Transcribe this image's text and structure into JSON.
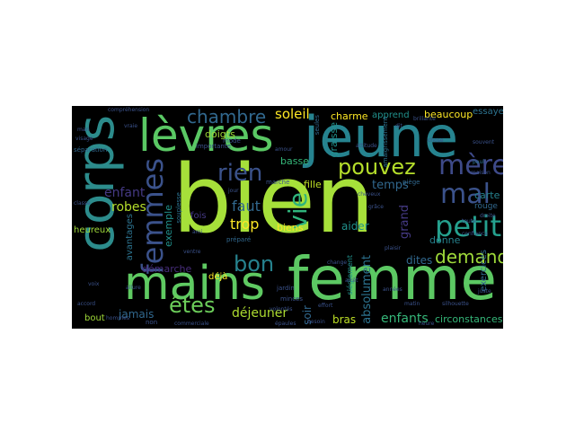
{
  "wordcloud": {
    "background": "#000000",
    "words": [
      {
        "id": "bien",
        "text": "bien",
        "color": "#a6e03a"
      },
      {
        "id": "femme",
        "text": "femme",
        "color": "#5cc863"
      },
      {
        "id": "jeune",
        "text": "jeune",
        "color": "#26838f"
      },
      {
        "id": "corps",
        "text": "corps",
        "color": "#2c8c8c"
      },
      {
        "id": "levres",
        "text": "lèvres",
        "color": "#5ac864"
      },
      {
        "id": "mains",
        "text": "mains",
        "color": "#5fca62"
      },
      {
        "id": "femmes",
        "text": "femmes",
        "color": "#3b528b"
      },
      {
        "id": "petit",
        "text": "petit",
        "color": "#25a18e"
      },
      {
        "id": "mere",
        "text": "mère",
        "color": "#3e4a89"
      },
      {
        "id": "mal",
        "text": "mal",
        "color": "#3b528b"
      },
      {
        "id": "pouvez",
        "text": "pouvez",
        "color": "#b5de2b"
      },
      {
        "id": "rien",
        "text": "rien",
        "color": "#3b528b"
      },
      {
        "id": "chambre",
        "text": "chambre",
        "color": "#31688e"
      },
      {
        "id": "vie",
        "text": "vie",
        "color": "#2fb47c"
      },
      {
        "id": "demander",
        "text": "demander",
        "color": "#9fda3a"
      },
      {
        "id": "bon",
        "text": "bon",
        "color": "#26828e"
      },
      {
        "id": "etes",
        "text": "êtes",
        "color": "#6ccd5a"
      },
      {
        "id": "soleil",
        "text": "soleil",
        "color": "#fde725"
      },
      {
        "id": "faut",
        "text": "faut",
        "color": "#31688e"
      },
      {
        "id": "trop",
        "text": "trop",
        "color": "#fde725"
      },
      {
        "id": "robes",
        "text": "robes",
        "color": "#b5de2b"
      },
      {
        "id": "enfant",
        "text": "enfant",
        "color": "#443983"
      },
      {
        "id": "demarche",
        "text": "démarche",
        "color": "#472d7b"
      },
      {
        "id": "jamais",
        "text": "jamais",
        "color": "#31688e"
      },
      {
        "id": "dejeuner",
        "text": "déjeuner",
        "color": "#addc30"
      },
      {
        "id": "enfants",
        "text": "enfants",
        "color": "#35b779"
      },
      {
        "id": "circonstances",
        "text": "circonstances",
        "color": "#35b779"
      },
      {
        "id": "beaucoup",
        "text": "beaucoup",
        "color": "#fde725"
      },
      {
        "id": "essayer",
        "text": "essayer",
        "color": "#2c728e"
      },
      {
        "id": "charme",
        "text": "charme",
        "color": "#fde725"
      },
      {
        "id": "apprend",
        "text": "apprend",
        "color": "#21918c"
      },
      {
        "id": "temps",
        "text": "temps",
        "color": "#31688e"
      },
      {
        "id": "fille",
        "text": "fille",
        "color": "#bddf26"
      },
      {
        "id": "biens",
        "text": "biens",
        "color": "#fde725"
      },
      {
        "id": "aider",
        "text": "aider",
        "color": "#21918c"
      },
      {
        "id": "dites",
        "text": "dites",
        "color": "#31688e"
      },
      {
        "id": "donne",
        "text": "donne",
        "color": "#26828e"
      },
      {
        "id": "carte",
        "text": "carte",
        "color": "#26828e"
      },
      {
        "id": "rouge",
        "text": "rouge",
        "color": "#31688e"
      },
      {
        "id": "bras",
        "text": "bras",
        "color": "#bddf26"
      },
      {
        "id": "soir",
        "text": "soir",
        "color": "#31688e"
      },
      {
        "id": "absolument",
        "text": "absolument",
        "color": "#2c728e"
      },
      {
        "id": "grand",
        "text": "grand",
        "color": "#443983"
      },
      {
        "id": "doigts",
        "text": "doigts",
        "color": "#a0da39"
      },
      {
        "id": "basse",
        "text": "basse",
        "color": "#35b779"
      },
      {
        "id": "graisse",
        "text": "graisse",
        "color": "#21918c"
      },
      {
        "id": "exemple",
        "text": "exemple",
        "color": "#21918c"
      },
      {
        "id": "fois",
        "text": "fois",
        "color": "#443983"
      },
      {
        "id": "deja",
        "text": "déjà",
        "color": "#fde725"
      },
      {
        "id": "heureux",
        "text": "heureux",
        "color": "#9fda3a"
      },
      {
        "id": "avantages",
        "text": "avantages",
        "color": "#2c728e"
      },
      {
        "id": "bout",
        "text": "bout",
        "color": "#a0da39"
      },
      {
        "id": "exercices",
        "text": "exercices",
        "color": "#31688e"
      },
      {
        "id": "siegement",
        "text": "siéglement",
        "color": "#21918c"
      },
      {
        "id": "importante",
        "text": "importante",
        "color": "#3b528b"
      },
      {
        "id": "mode",
        "text": "mode",
        "color": "#3b528b"
      },
      {
        "id": "marche",
        "text": "marche",
        "color": "#3b528b"
      },
      {
        "id": "prepare",
        "text": "préparé",
        "color": "#31688e"
      },
      {
        "id": "separation",
        "text": "séparation",
        "color": "#31688e"
      },
      {
        "id": "seules",
        "text": "seules",
        "color": "#31688e"
      },
      {
        "id": "piege",
        "text": "piège",
        "color": "#31688e"
      },
      {
        "id": "amaigrissement",
        "text": "amaigrissement",
        "color": "#2c728e"
      },
      {
        "id": "souplesse",
        "text": "souplesse",
        "color": "#2c728e"
      },
      {
        "id": "jardin",
        "text": "jardin",
        "color": "#3b528b"
      },
      {
        "id": "minces",
        "text": "minces",
        "color": "#3b528b"
      },
      {
        "id": "epaules",
        "text": "épaules",
        "color": "#3b528b"
      },
      {
        "id": "non",
        "text": "non",
        "color": "#3b528b"
      },
      {
        "id": "voix",
        "text": "voix",
        "color": "#3b528b"
      },
      {
        "id": "jour",
        "text": "jour",
        "color": "#3b528b"
      },
      {
        "id": "paul",
        "text": "paul",
        "color": "#2c728e"
      },
      {
        "id": "volontes",
        "text": "volontés",
        "color": "#3b528b"
      },
      {
        "id": "mari",
        "text": "mari",
        "color": "#3b528b"
      },
      {
        "id": "toute",
        "text": "toute",
        "color": "#3b528b"
      },
      {
        "id": "change",
        "text": "change",
        "color": "#3b528b"
      },
      {
        "id": "maison",
        "text": "maison",
        "color": "#3b528b"
      },
      {
        "id": "droite",
        "text": "droite",
        "color": "#3b528b"
      },
      {
        "id": "cheveux",
        "text": "cheveux",
        "color": "#3b528b"
      },
      {
        "id": "chose",
        "text": "chose",
        "color": "#3b528b"
      },
      {
        "id": "dit",
        "text": "dit",
        "color": "#3b528b"
      },
      {
        "id": "hommes",
        "text": "hommes",
        "color": "#3b528b"
      },
      {
        "id": "brillante",
        "text": "brillante",
        "color": "#3b528b"
      },
      {
        "id": "silhouette",
        "text": "silhouette",
        "color": "#3b528b"
      },
      {
        "id": "accord",
        "text": "accord",
        "color": "#3b528b"
      },
      {
        "id": "matin",
        "text": "matin",
        "color": "#3b528b"
      },
      {
        "id": "classe",
        "text": "classe",
        "color": "#3b528b"
      },
      {
        "id": "ami",
        "text": "ami",
        "color": "#3b528b"
      },
      {
        "id": "ventre",
        "text": "ventre",
        "color": "#3b528b"
      },
      {
        "id": "juste",
        "text": "juste",
        "color": "#3b528b"
      },
      {
        "id": "grace",
        "text": "grâce",
        "color": "#3b528b"
      },
      {
        "id": "visage",
        "text": "visage",
        "color": "#3b528b"
      },
      {
        "id": "comprehension",
        "text": "compréhension",
        "color": "#3b528b"
      },
      {
        "id": "vraie",
        "text": "vraie",
        "color": "#3b528b"
      },
      {
        "id": "arret",
        "text": "arrêt",
        "color": "#3b528b"
      },
      {
        "id": "annees",
        "text": "années",
        "color": "#3b528b"
      },
      {
        "id": "effort",
        "text": "effort",
        "color": "#3b528b"
      },
      {
        "id": "confiance",
        "text": "confiance",
        "color": "#3b528b"
      },
      {
        "id": "attitude",
        "text": "attitude",
        "color": "#3b528b"
      },
      {
        "id": "commerciale",
        "text": "commerciale",
        "color": "#3b528b"
      },
      {
        "id": "allure",
        "text": "allure",
        "color": "#3b528b"
      },
      {
        "id": "amour",
        "text": "amour",
        "color": "#3b528b"
      },
      {
        "id": "souvent",
        "text": "souvent",
        "color": "#3b528b"
      },
      {
        "id": "heure",
        "text": "heure",
        "color": "#3b528b"
      },
      {
        "id": "besoin",
        "text": "besoin",
        "color": "#3b528b"
      },
      {
        "id": "plaisir",
        "text": "plaisir",
        "color": "#3b528b"
      }
    ]
  }
}
